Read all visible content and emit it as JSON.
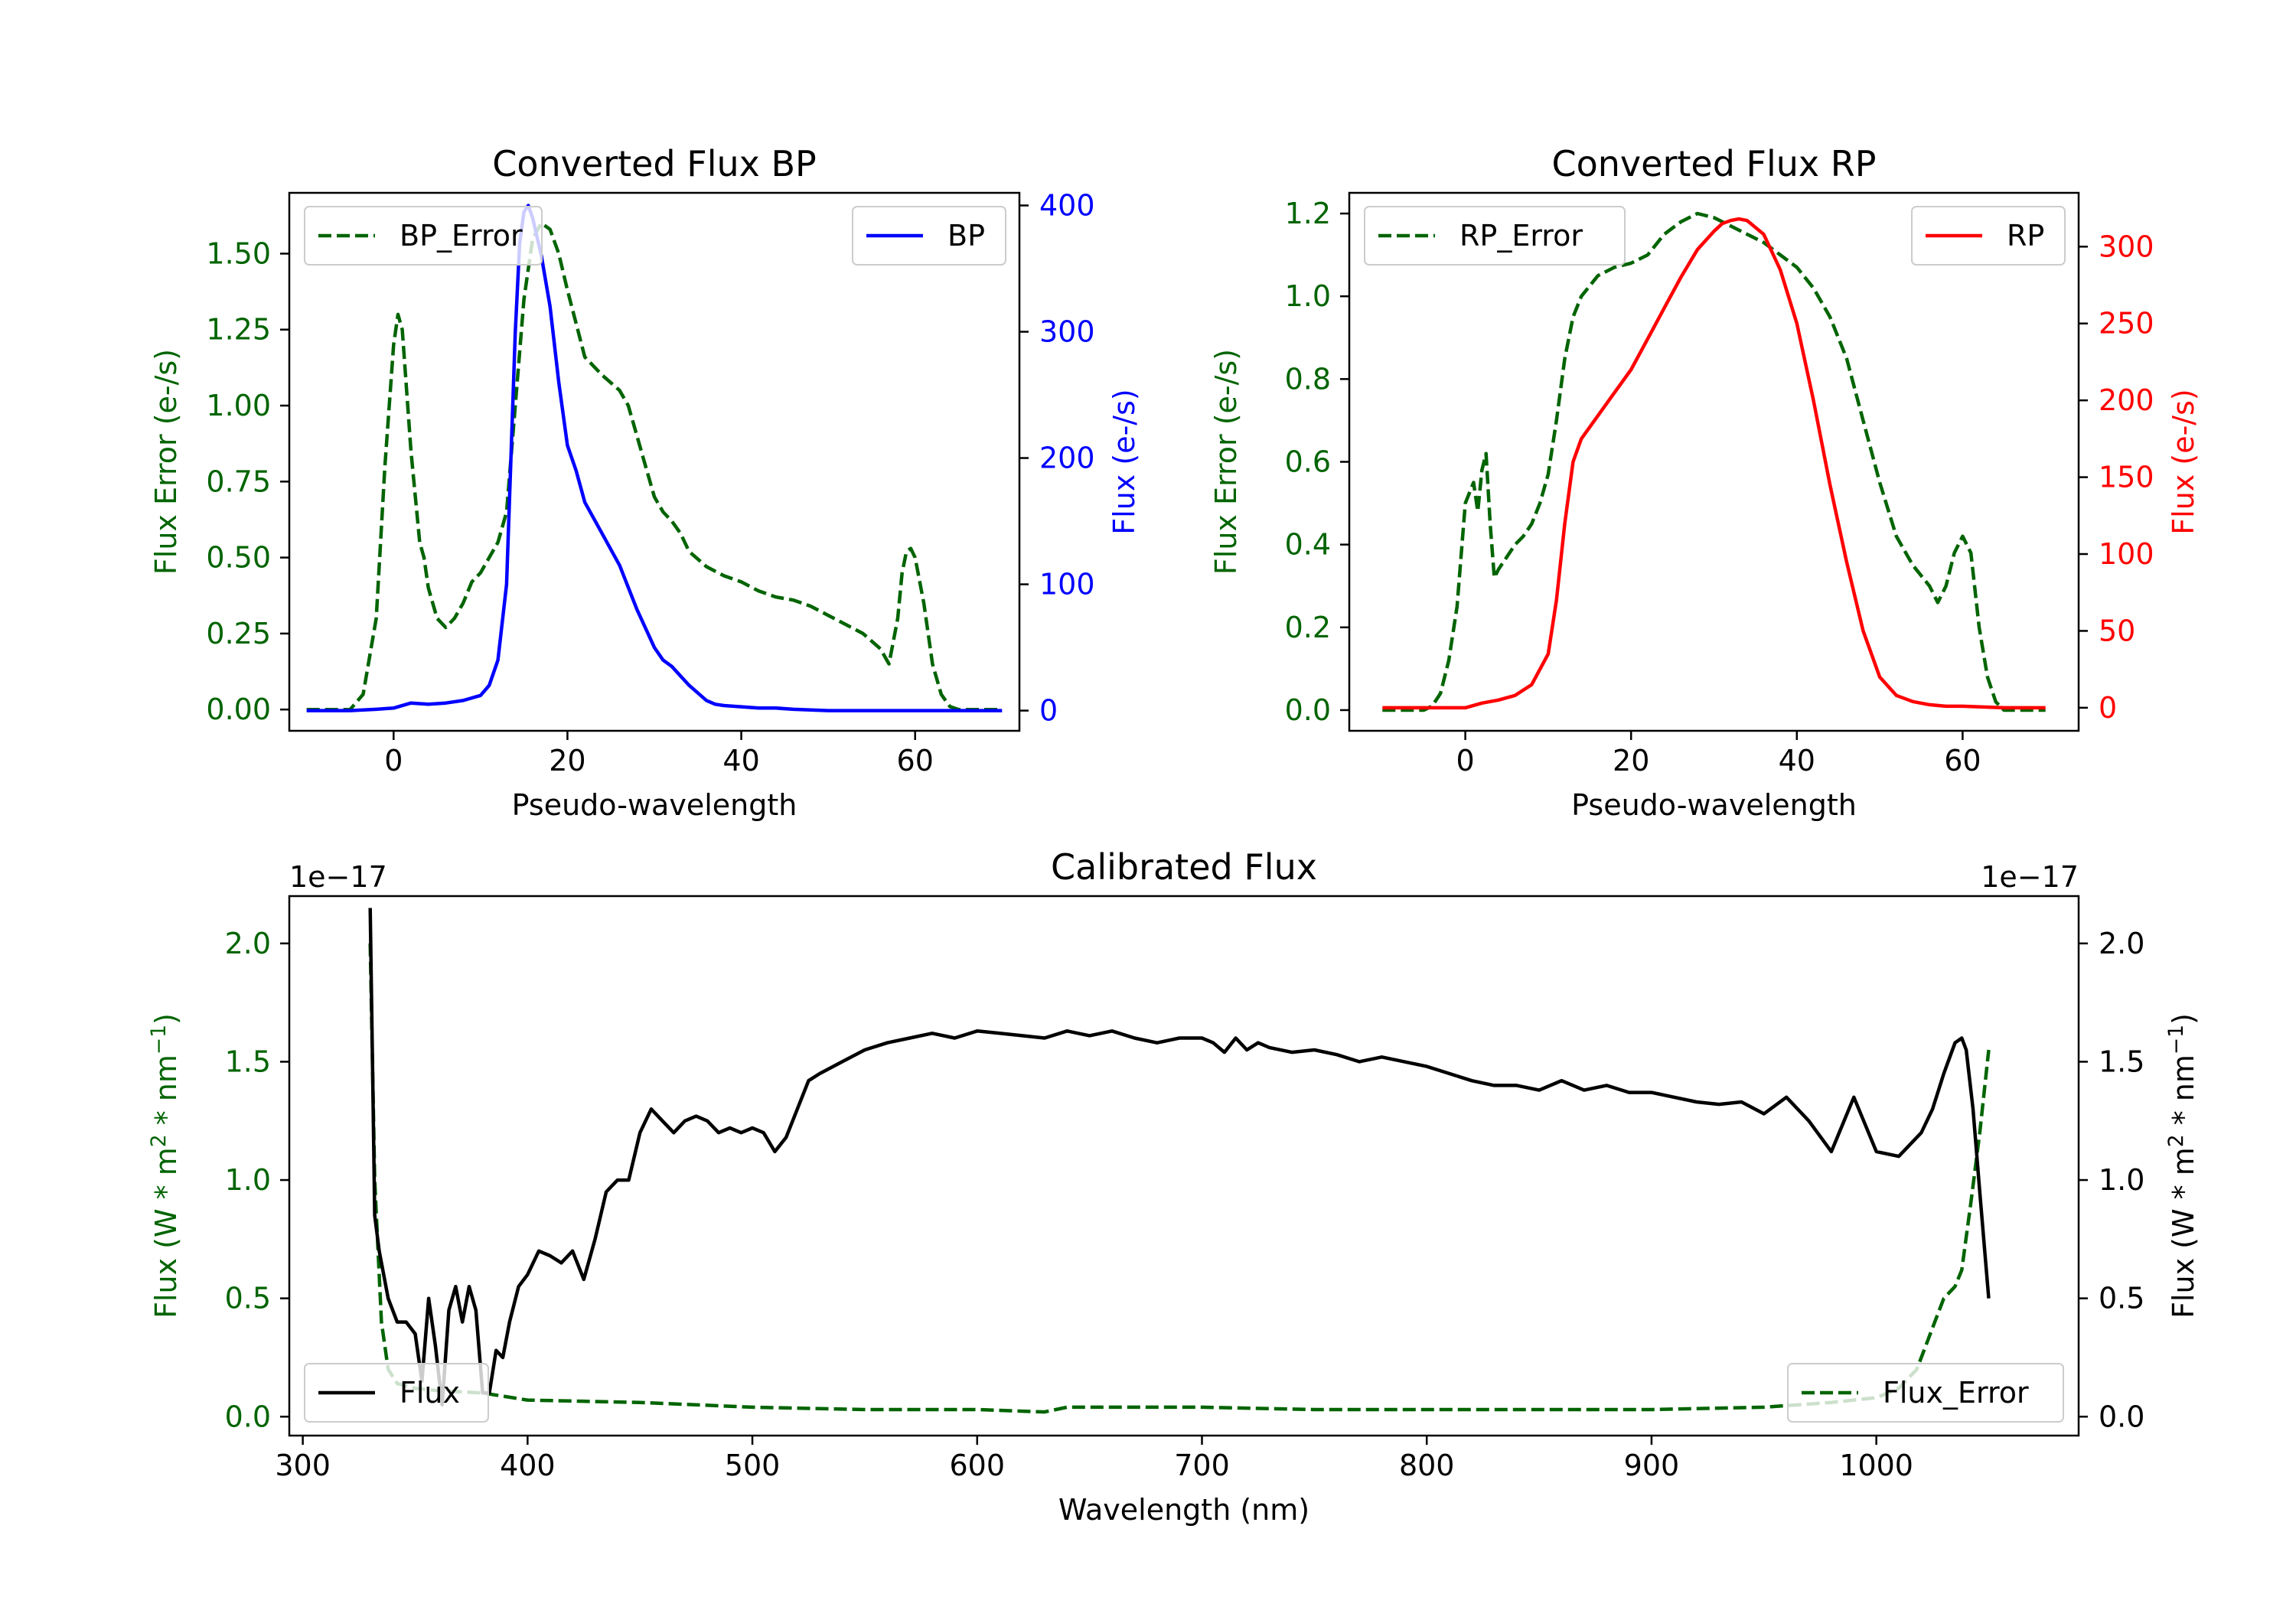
{
  "colors": {
    "bp": "#0000ff",
    "rp": "#ff0000",
    "error": "#006400",
    "flux": "#000000",
    "axis": "#000000"
  },
  "chart_data": [
    {
      "id": "bp",
      "type": "line",
      "title": "Converted Flux BP",
      "xlabel": "Pseudo-wavelength",
      "ylabel_left": "Flux Error (e-/s)",
      "ylabel_right": "Flux (e-/s)",
      "xlim": [
        -12,
        72
      ],
      "xticks": [
        0,
        20,
        40,
        60
      ],
      "xtick_labels": [
        "0",
        "20",
        "40",
        "60"
      ],
      "ylim_left": [
        -0.07,
        1.7
      ],
      "yticks_left": [
        0,
        0.25,
        0.5,
        0.75,
        1.0,
        1.25,
        1.5
      ],
      "ytick_labels_left": [
        "0.00",
        "0.25",
        "0.50",
        "0.75",
        "1.00",
        "1.25",
        "1.50"
      ],
      "ylim_right": [
        -16,
        410
      ],
      "yticks_right": [
        0,
        100,
        200,
        300,
        400
      ],
      "ytick_labels_right": [
        "0",
        "100",
        "200",
        "300",
        "400"
      ],
      "legend_left": "BP_Error",
      "legend_right": "BP",
      "series": [
        {
          "name": "BP_Error",
          "axis": "left",
          "style": "dashed",
          "color": "#006400",
          "x": [
            -10,
            -5,
            -3.5,
            -2,
            -1,
            0,
            0.5,
            1,
            2,
            3,
            3.5,
            4,
            5,
            6,
            7,
            8,
            9,
            10,
            11,
            12,
            13,
            14,
            15,
            16,
            17,
            18,
            19,
            20,
            21,
            22,
            24,
            26,
            27,
            28,
            29,
            30,
            31,
            32,
            33,
            34,
            36,
            38,
            40,
            42,
            44,
            46,
            48,
            50,
            52,
            54,
            56,
            57,
            58,
            58.5,
            59,
            59.5,
            60,
            61,
            62,
            63,
            64,
            65,
            70
          ],
          "y": [
            0,
            0,
            0.05,
            0.3,
            0.8,
            1.2,
            1.3,
            1.25,
            0.85,
            0.55,
            0.5,
            0.4,
            0.3,
            0.27,
            0.3,
            0.35,
            0.42,
            0.45,
            0.5,
            0.55,
            0.65,
            1.0,
            1.35,
            1.55,
            1.6,
            1.58,
            1.5,
            1.38,
            1.27,
            1.16,
            1.1,
            1.05,
            1.0,
            0.9,
            0.8,
            0.7,
            0.65,
            0.62,
            0.58,
            0.52,
            0.47,
            0.44,
            0.42,
            0.39,
            0.37,
            0.36,
            0.34,
            0.31,
            0.28,
            0.25,
            0.2,
            0.15,
            0.3,
            0.45,
            0.52,
            0.53,
            0.5,
            0.35,
            0.15,
            0.05,
            0.01,
            0,
            0
          ]
        },
        {
          "name": "BP",
          "axis": "right",
          "style": "solid",
          "color": "#0000ff",
          "x": [
            -10,
            -5,
            -2,
            0,
            2,
            4,
            6,
            8,
            10,
            11,
            12,
            13,
            13.5,
            14,
            14.5,
            15,
            15.5,
            16,
            17,
            18,
            19,
            20,
            21,
            22,
            24,
            26,
            28,
            30,
            31,
            32,
            34,
            36,
            37,
            38,
            40,
            42,
            44,
            46,
            50,
            55,
            60,
            65,
            70
          ],
          "y": [
            0,
            0,
            1,
            2,
            6,
            5,
            6,
            8,
            12,
            20,
            40,
            100,
            200,
            300,
            370,
            395,
            400,
            390,
            360,
            320,
            260,
            210,
            190,
            165,
            140,
            115,
            80,
            50,
            40,
            35,
            20,
            8,
            5,
            4,
            3,
            2,
            2,
            1,
            0,
            0,
            0,
            0,
            0
          ]
        }
      ]
    },
    {
      "id": "rp",
      "type": "line",
      "title": "Converted Flux RP",
      "xlabel": "Pseudo-wavelength",
      "ylabel_left": "Flux Error (e-/s)",
      "ylabel_right": "Flux (e-/s)",
      "xlim": [
        -14,
        74
      ],
      "xticks": [
        0,
        20,
        40,
        60
      ],
      "xtick_labels": [
        "0",
        "20",
        "40",
        "60"
      ],
      "ylim_left": [
        -0.05,
        1.25
      ],
      "yticks_left": [
        0,
        0.2,
        0.4,
        0.6,
        0.8,
        1.0,
        1.2
      ],
      "ytick_labels_left": [
        "0.0",
        "0.2",
        "0.4",
        "0.6",
        "0.8",
        "1.0",
        "1.2"
      ],
      "ylim_right": [
        -15,
        335
      ],
      "yticks_right": [
        0,
        50,
        100,
        150,
        200,
        250,
        300
      ],
      "ytick_labels_right": [
        "0",
        "50",
        "100",
        "150",
        "200",
        "250",
        "300"
      ],
      "legend_left": "RP_Error",
      "legend_right": "RP",
      "series": [
        {
          "name": "RP_Error",
          "axis": "left",
          "style": "dashed",
          "color": "#006400",
          "x": [
            -10,
            -5,
            -4,
            -3,
            -2,
            -1,
            0,
            1,
            1.5,
            2,
            2.5,
            3,
            3.5,
            4,
            5,
            6,
            7,
            8,
            9,
            10,
            11,
            12,
            13,
            14,
            16,
            18,
            20,
            22,
            24,
            26,
            28,
            30,
            32,
            34,
            36,
            38,
            40,
            42,
            44,
            46,
            48,
            50,
            52,
            54,
            56,
            57,
            58,
            59,
            60,
            61,
            62,
            63,
            64,
            65,
            70
          ],
          "y": [
            0,
            0,
            0.01,
            0.04,
            0.12,
            0.25,
            0.5,
            0.55,
            0.48,
            0.58,
            0.62,
            0.45,
            0.32,
            0.34,
            0.37,
            0.4,
            0.42,
            0.45,
            0.5,
            0.57,
            0.7,
            0.85,
            0.95,
            1.0,
            1.05,
            1.07,
            1.08,
            1.1,
            1.15,
            1.18,
            1.2,
            1.19,
            1.17,
            1.15,
            1.13,
            1.1,
            1.07,
            1.02,
            0.95,
            0.85,
            0.7,
            0.55,
            0.42,
            0.35,
            0.3,
            0.26,
            0.3,
            0.38,
            0.42,
            0.38,
            0.2,
            0.08,
            0.02,
            0,
            0
          ]
        },
        {
          "name": "RP",
          "axis": "right",
          "style": "solid",
          "color": "#ff0000",
          "x": [
            -10,
            -5,
            0,
            2,
            4,
            6,
            8,
            10,
            11,
            12,
            13,
            14,
            16,
            18,
            20,
            22,
            24,
            26,
            28,
            30,
            31,
            32,
            33,
            34,
            36,
            38,
            40,
            42,
            44,
            46,
            48,
            50,
            52,
            54,
            56,
            58,
            60,
            65,
            70
          ],
          "y": [
            0,
            0,
            0,
            3,
            5,
            8,
            15,
            35,
            70,
            120,
            160,
            175,
            190,
            205,
            220,
            240,
            260,
            280,
            298,
            310,
            315,
            317,
            318,
            317,
            308,
            285,
            250,
            200,
            145,
            95,
            50,
            20,
            8,
            4,
            2,
            1,
            1,
            0,
            0
          ]
        }
      ]
    },
    {
      "id": "calibrated",
      "type": "line",
      "title": "Calibrated Flux",
      "xlabel": "Wavelength (nm)",
      "ylabel_left": "Flux (W * m$^2$ * nm$^{-1}$)",
      "ylabel_left_parts": [
        "Flux (W * m",
        "2",
        " * nm",
        "−1",
        ")"
      ],
      "ylabel_right_parts": [
        "Flux (W * m",
        "2",
        " * nm",
        "−1",
        ")"
      ],
      "offset_left": "1e−17",
      "offset_right": "1e−17",
      "xlim": [
        294,
        1090
      ],
      "xticks": [
        300,
        400,
        500,
        600,
        700,
        800,
        900,
        1000
      ],
      "xtick_labels": [
        "300",
        "400",
        "500",
        "600",
        "700",
        "800",
        "900",
        "1000"
      ],
      "ylim_left": [
        -0.08,
        2.2
      ],
      "yticks_left": [
        0,
        0.5,
        1.0,
        1.5,
        2.0
      ],
      "ytick_labels_left": [
        "0.0",
        "0.5",
        "1.0",
        "1.5",
        "2.0"
      ],
      "ylim_right": [
        -0.08,
        2.2
      ],
      "yticks_right": [
        0,
        0.5,
        1.0,
        1.5,
        2.0
      ],
      "ytick_labels_right": [
        "0.0",
        "0.5",
        "1.0",
        "1.5",
        "2.0"
      ],
      "legend_left": "Flux",
      "legend_right": "Flux_Error",
      "series": [
        {
          "name": "Flux_Error",
          "axis": "left",
          "style": "dashed",
          "color": "#006400",
          "x": [
            330,
            332,
            335,
            338,
            342,
            350,
            360,
            380,
            400,
            450,
            500,
            550,
            600,
            630,
            640,
            660,
            700,
            750,
            800,
            850,
            900,
            950,
            980,
            1000,
            1010,
            1018,
            1022,
            1026,
            1030,
            1035,
            1038,
            1042,
            1046,
            1050
          ],
          "y": [
            2.0,
            1.0,
            0.4,
            0.2,
            0.14,
            0.12,
            0.11,
            0.1,
            0.07,
            0.06,
            0.04,
            0.03,
            0.03,
            0.02,
            0.04,
            0.04,
            0.04,
            0.03,
            0.03,
            0.03,
            0.03,
            0.04,
            0.06,
            0.08,
            0.12,
            0.2,
            0.3,
            0.4,
            0.5,
            0.55,
            0.62,
            0.9,
            1.2,
            1.55
          ]
        },
        {
          "name": "Flux",
          "axis": "right",
          "style": "solid",
          "color": "#000000",
          "x": [
            330,
            331,
            332,
            334,
            338,
            342,
            346,
            350,
            353,
            356,
            359,
            362,
            365,
            368,
            371,
            374,
            377,
            380,
            383,
            386,
            389,
            392,
            396,
            400,
            405,
            410,
            415,
            420,
            425,
            430,
            435,
            440,
            445,
            450,
            455,
            460,
            465,
            470,
            475,
            480,
            485,
            490,
            495,
            500,
            505,
            510,
            515,
            520,
            525,
            530,
            540,
            550,
            560,
            570,
            580,
            590,
            600,
            610,
            620,
            630,
            640,
            650,
            660,
            670,
            680,
            690,
            700,
            705,
            710,
            715,
            720,
            725,
            730,
            740,
            750,
            760,
            770,
            780,
            790,
            800,
            810,
            820,
            830,
            840,
            850,
            860,
            870,
            880,
            890,
            900,
            910,
            920,
            930,
            940,
            950,
            960,
            970,
            980,
            990,
            1000,
            1010,
            1020,
            1025,
            1030,
            1035,
            1038,
            1040,
            1043,
            1046,
            1050
          ],
          "y": [
            2.15,
            1.5,
            0.85,
            0.7,
            0.5,
            0.4,
            0.4,
            0.35,
            0.15,
            0.5,
            0.3,
            0.05,
            0.45,
            0.55,
            0.4,
            0.55,
            0.45,
            0.1,
            0.1,
            0.28,
            0.25,
            0.4,
            0.55,
            0.6,
            0.7,
            0.68,
            0.65,
            0.7,
            0.58,
            0.75,
            0.95,
            1.0,
            1.0,
            1.2,
            1.3,
            1.25,
            1.2,
            1.25,
            1.27,
            1.25,
            1.2,
            1.22,
            1.2,
            1.22,
            1.2,
            1.12,
            1.18,
            1.3,
            1.42,
            1.45,
            1.5,
            1.55,
            1.58,
            1.6,
            1.62,
            1.6,
            1.63,
            1.62,
            1.61,
            1.6,
            1.63,
            1.61,
            1.63,
            1.6,
            1.58,
            1.6,
            1.6,
            1.58,
            1.54,
            1.6,
            1.55,
            1.58,
            1.56,
            1.54,
            1.55,
            1.53,
            1.5,
            1.52,
            1.5,
            1.48,
            1.45,
            1.42,
            1.4,
            1.4,
            1.38,
            1.42,
            1.38,
            1.4,
            1.37,
            1.37,
            1.35,
            1.33,
            1.32,
            1.33,
            1.28,
            1.35,
            1.25,
            1.12,
            1.35,
            1.12,
            1.1,
            1.2,
            1.3,
            1.45,
            1.58,
            1.6,
            1.55,
            1.3,
            0.95,
            0.5
          ]
        }
      ]
    }
  ]
}
